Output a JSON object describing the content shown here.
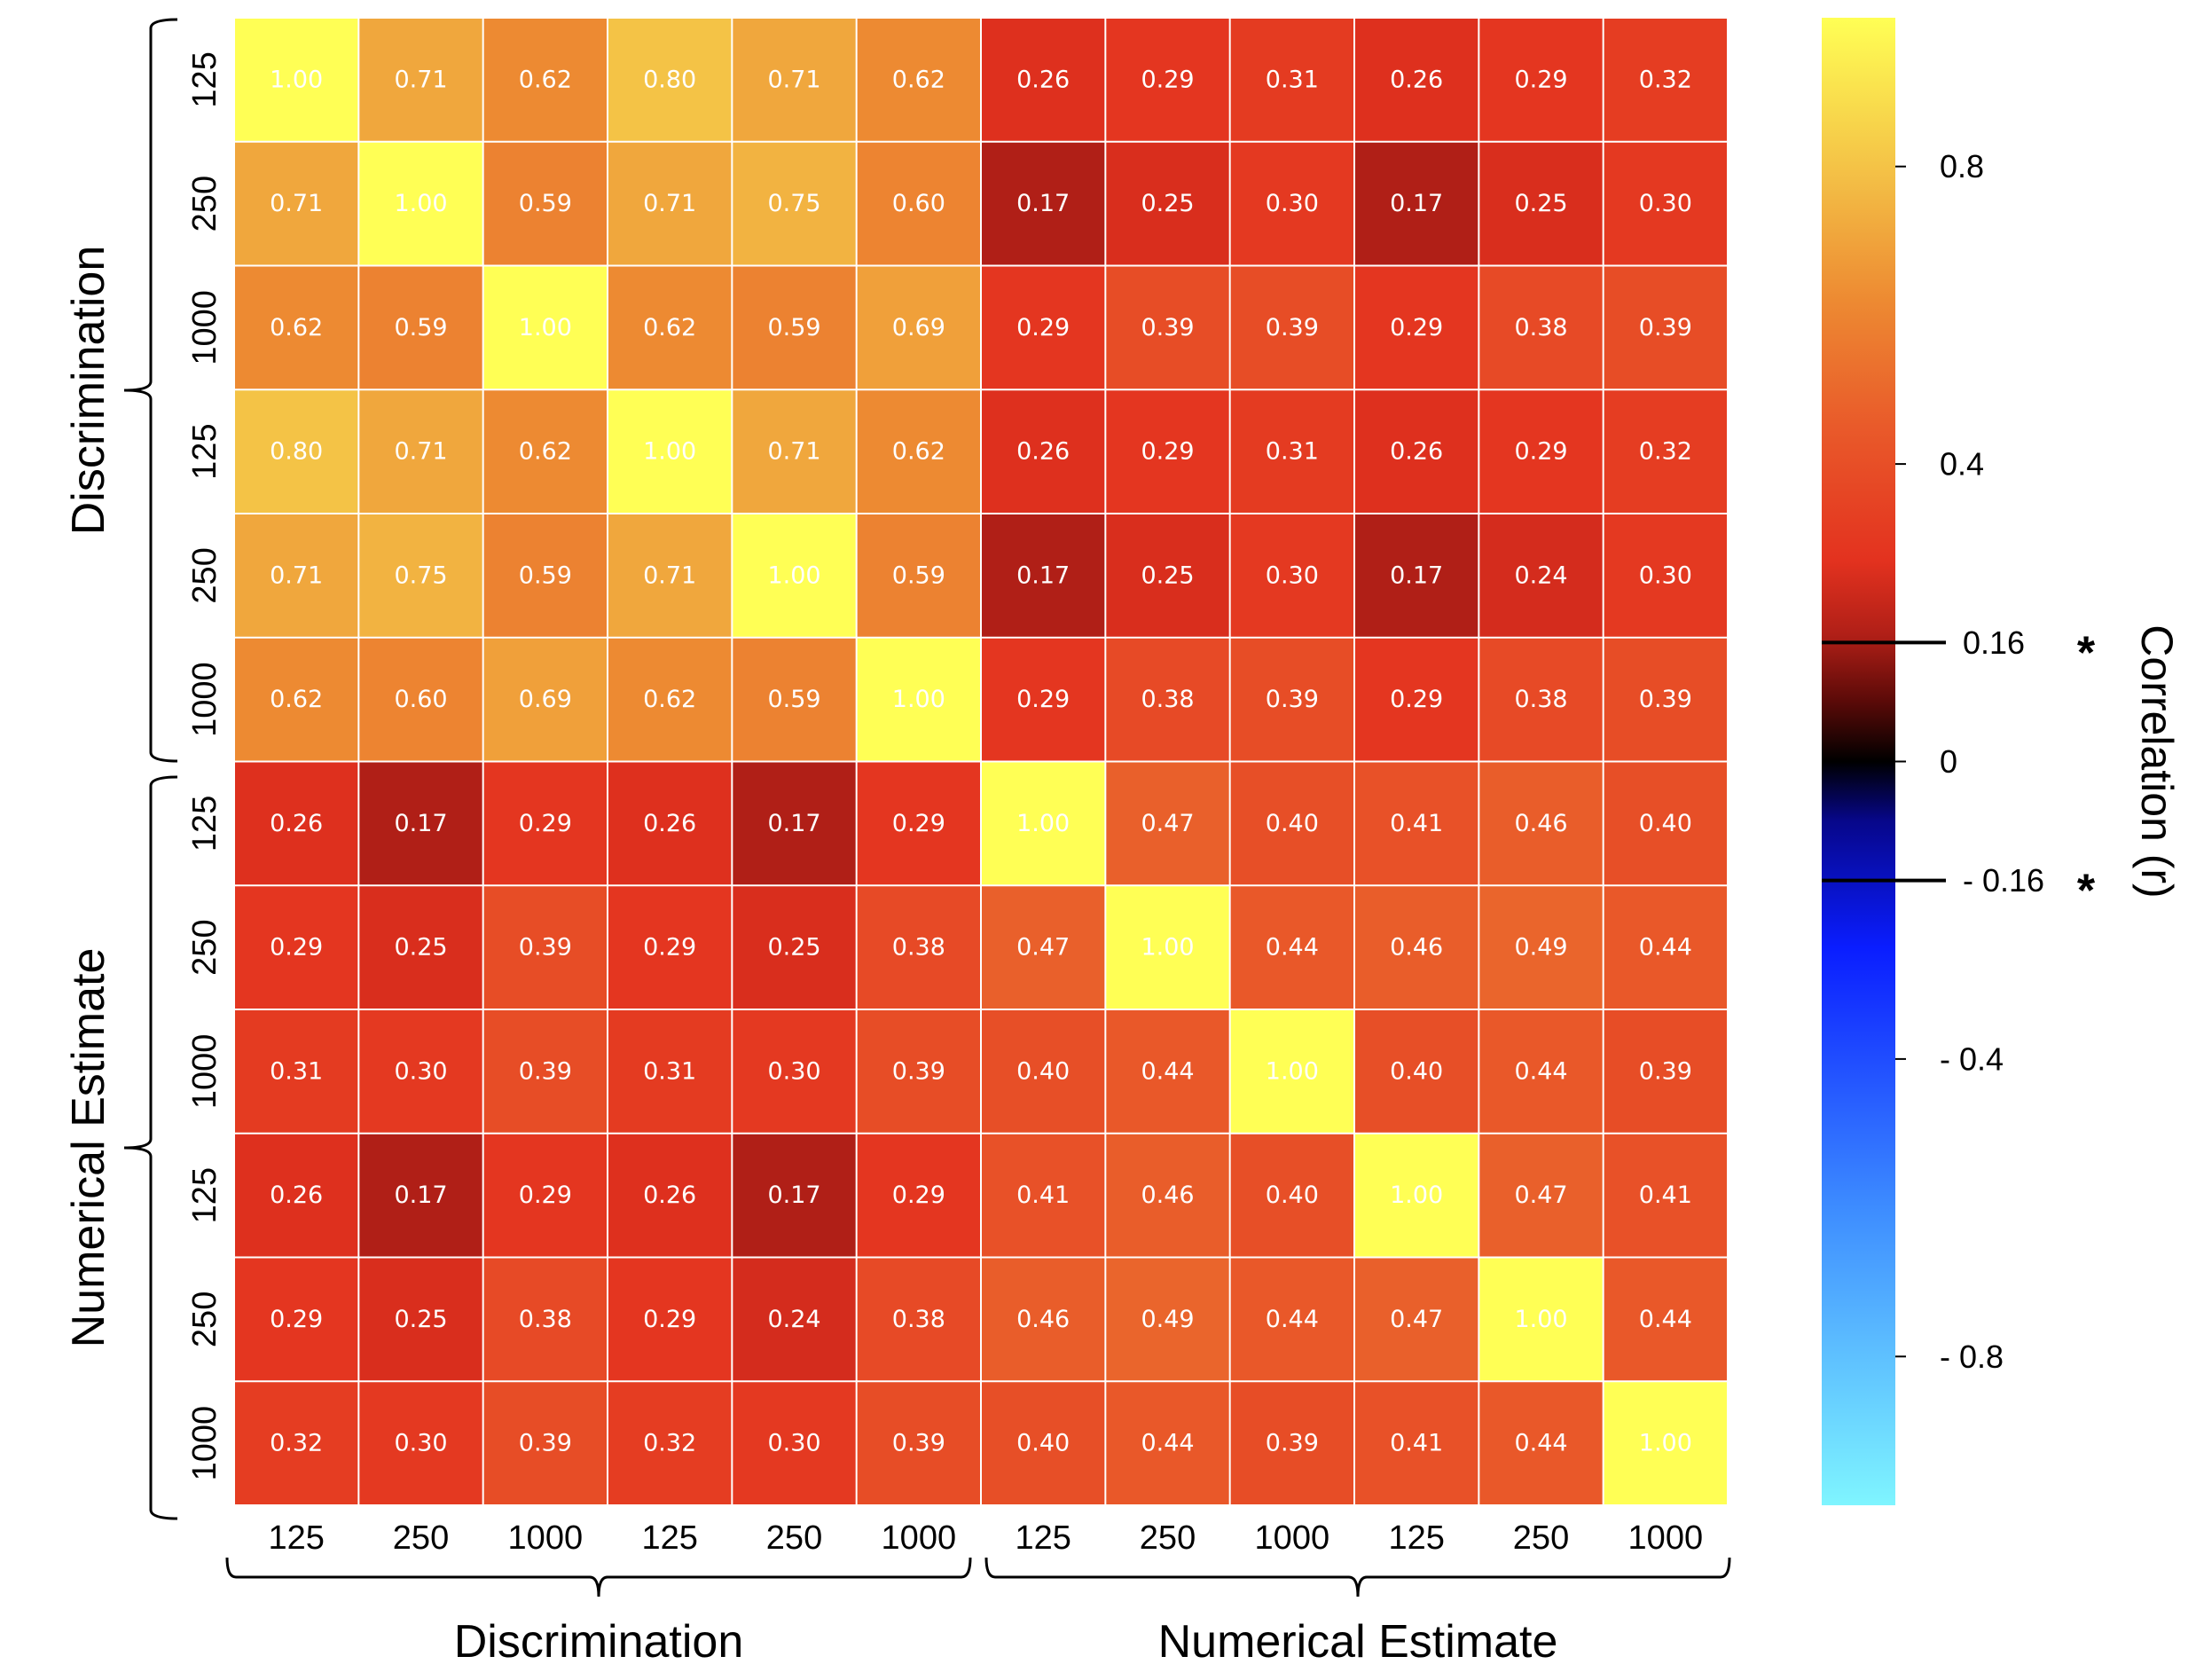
{
  "chart_data": {
    "type": "heatmap",
    "row_labels": [
      "125",
      "250",
      "1000",
      "125",
      "250",
      "1000",
      "125",
      "250",
      "1000",
      "125",
      "250",
      "1000"
    ],
    "col_labels": [
      "125",
      "250",
      "1000",
      "125",
      "250",
      "1000",
      "125",
      "250",
      "1000",
      "125",
      "250",
      "1000"
    ],
    "row_groups": [
      {
        "label": "Discrimination",
        "span": [
          0,
          5
        ]
      },
      {
        "label": "Numerical Estimate",
        "span": [
          6,
          11
        ]
      }
    ],
    "col_groups": [
      {
        "label": "Discrimination",
        "span": [
          0,
          5
        ]
      },
      {
        "label": "Numerical Estimate",
        "span": [
          6,
          11
        ]
      }
    ],
    "values": [
      [
        1.0,
        0.71,
        0.62,
        0.8,
        0.71,
        0.62,
        0.26,
        0.29,
        0.31,
        0.26,
        0.29,
        0.32
      ],
      [
        0.71,
        1.0,
        0.59,
        0.71,
        0.75,
        0.6,
        0.17,
        0.25,
        0.3,
        0.17,
        0.25,
        0.3
      ],
      [
        0.62,
        0.59,
        1.0,
        0.62,
        0.59,
        0.69,
        0.29,
        0.39,
        0.39,
        0.29,
        0.38,
        0.39
      ],
      [
        0.8,
        0.71,
        0.62,
        1.0,
        0.71,
        0.62,
        0.26,
        0.29,
        0.31,
        0.26,
        0.29,
        0.32
      ],
      [
        0.71,
        0.75,
        0.59,
        0.71,
        1.0,
        0.59,
        0.17,
        0.25,
        0.3,
        0.17,
        0.24,
        0.3
      ],
      [
        0.62,
        0.6,
        0.69,
        0.62,
        0.59,
        1.0,
        0.29,
        0.38,
        0.39,
        0.29,
        0.38,
        0.39
      ],
      [
        0.26,
        0.17,
        0.29,
        0.26,
        0.17,
        0.29,
        1.0,
        0.47,
        0.4,
        0.41,
        0.46,
        0.4
      ],
      [
        0.29,
        0.25,
        0.39,
        0.29,
        0.25,
        0.38,
        0.47,
        1.0,
        0.44,
        0.46,
        0.49,
        0.44
      ],
      [
        0.31,
        0.3,
        0.39,
        0.31,
        0.3,
        0.39,
        0.4,
        0.44,
        1.0,
        0.4,
        0.44,
        0.39
      ],
      [
        0.26,
        0.17,
        0.29,
        0.26,
        0.17,
        0.29,
        0.41,
        0.46,
        0.4,
        1.0,
        0.47,
        0.41
      ],
      [
        0.29,
        0.25,
        0.38,
        0.29,
        0.24,
        0.38,
        0.46,
        0.49,
        0.44,
        0.47,
        1.0,
        0.44
      ],
      [
        0.32,
        0.3,
        0.39,
        0.32,
        0.3,
        0.39,
        0.4,
        0.44,
        0.39,
        0.41,
        0.44,
        1.0
      ]
    ],
    "value_format": "2 decimals",
    "colorbar": {
      "label": "Correlation (r)",
      "range": [
        -1,
        1
      ],
      "ticks": [
        {
          "value": 0.8,
          "label": "0.8"
        },
        {
          "value": 0.4,
          "label": "0.4"
        },
        {
          "value": 0,
          "label": "0"
        },
        {
          "value": -0.4,
          "label": "- 0.4"
        },
        {
          "value": -0.8,
          "label": "- 0.8"
        }
      ],
      "thresholds": [
        {
          "value": 0.16,
          "label": "0.16",
          "marker": "*"
        },
        {
          "value": -0.16,
          "label": "- 0.16",
          "marker": "*"
        }
      ],
      "colormap_stops": [
        {
          "value": -1.0,
          "color": "#7ff5ff"
        },
        {
          "value": -0.6,
          "color": "#3d8cff"
        },
        {
          "value": -0.25,
          "color": "#0a1dff"
        },
        {
          "value": -0.08,
          "color": "#07078a"
        },
        {
          "value": 0.0,
          "color": "#000000"
        },
        {
          "value": 0.08,
          "color": "#5a0a08"
        },
        {
          "value": 0.17,
          "color": "#b01f17"
        },
        {
          "value": 0.27,
          "color": "#e3321f"
        },
        {
          "value": 0.45,
          "color": "#e95a2a"
        },
        {
          "value": 0.62,
          "color": "#ed8a32"
        },
        {
          "value": 0.78,
          "color": "#f3bd45"
        },
        {
          "value": 1.0,
          "color": "#ffff55"
        }
      ]
    },
    "grid_line_color": "#ffffff"
  }
}
